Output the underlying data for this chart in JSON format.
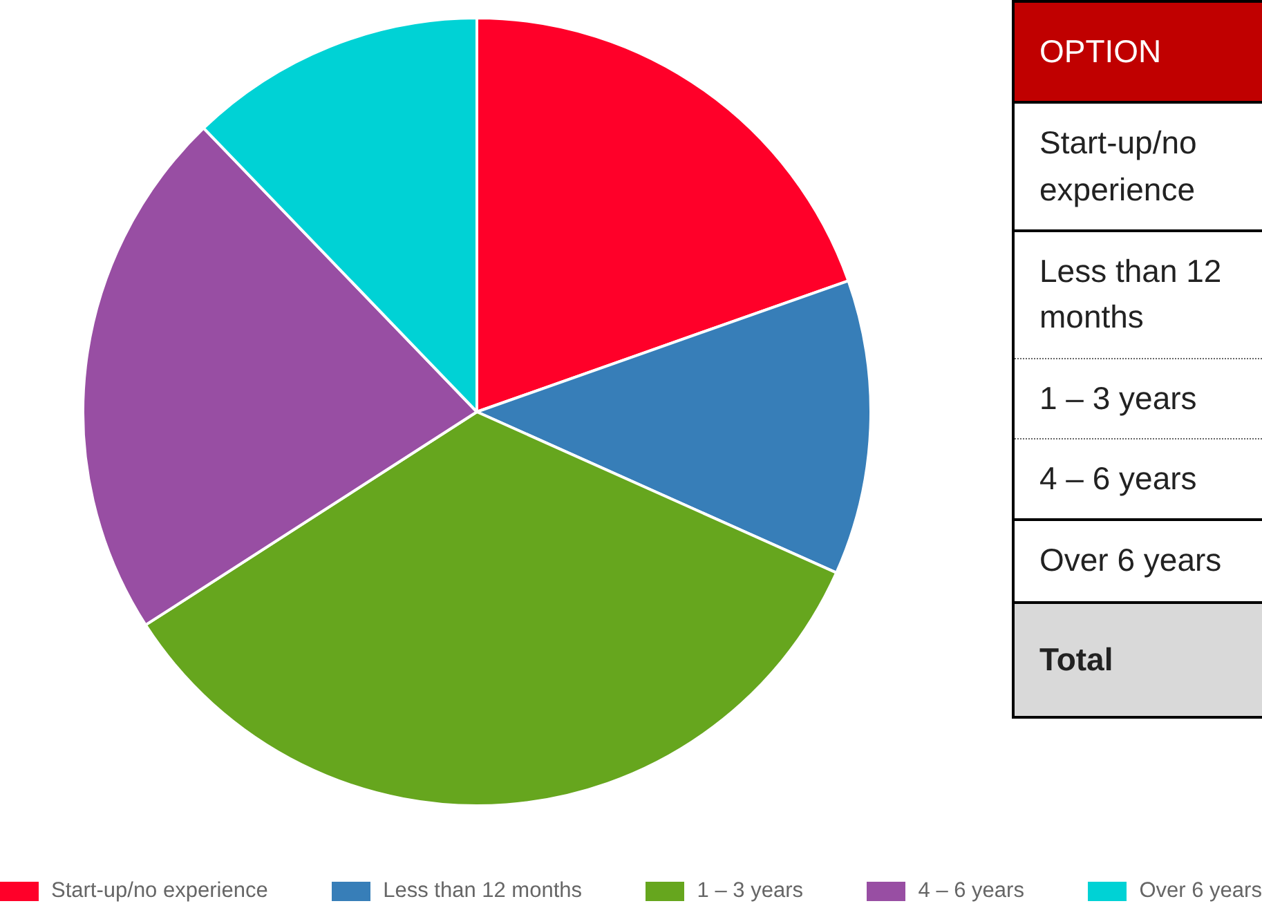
{
  "chart_data": {
    "type": "pie",
    "categories": [
      "Start-up/no experience",
      "Less than 12 months",
      "1 – 3 years",
      "4 – 6 years",
      "Over 6 years"
    ],
    "values": [
      19.6,
      12.1,
      34.2,
      21.9,
      12.2
    ],
    "colors": [
      "#ff0029",
      "#377eb8",
      "#66a61e",
      "#984ea3",
      "#00d2d5"
    ],
    "legend": "bottom",
    "annotations": [
      "OPTION",
      "Total"
    ]
  }
}
